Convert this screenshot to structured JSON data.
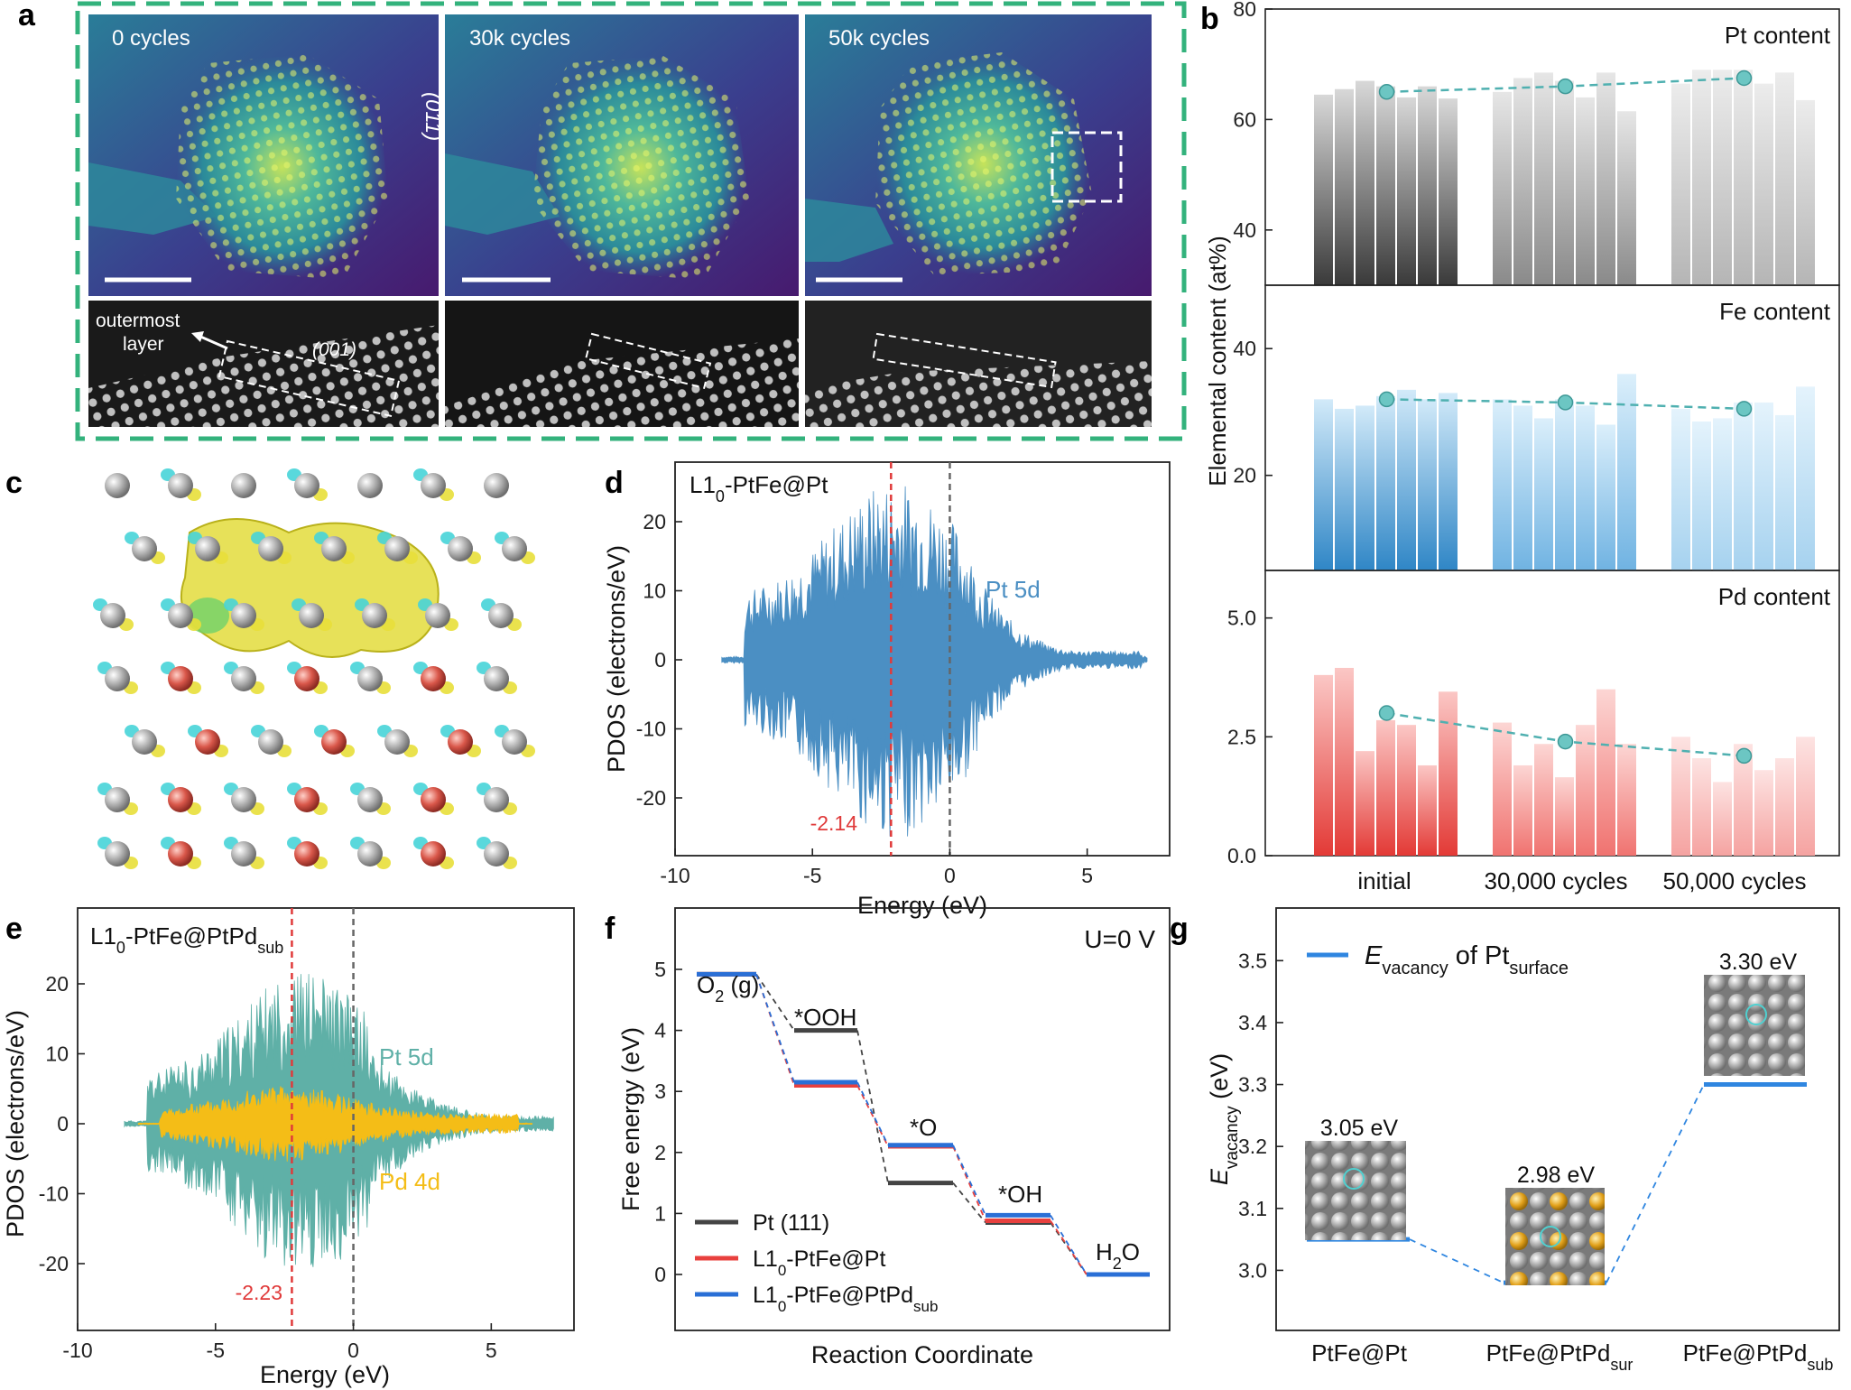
{
  "panel_labels": {
    "a": "a",
    "b": "b",
    "c": "c",
    "d": "d",
    "e": "e",
    "f": "f",
    "g": "g"
  },
  "panel_a": {
    "stem_labels": [
      "0 cycles",
      "30k cycles",
      "50k cycles"
    ],
    "facet_011": "(011)",
    "facet_001": "(001)",
    "outermost_line1": "outermost",
    "outermost_line2": "layer"
  },
  "panel_b": {
    "ylabel": "Elemental content (at%)",
    "categories": [
      "initial",
      "30,000 cycles",
      "50,000 cycles"
    ],
    "subpanels": [
      {
        "title": "Pt content",
        "yticks": [
          "80",
          "60",
          "40"
        ],
        "color_dark": "#555555",
        "color_light": "#d9d9d9",
        "bars": [
          [
            64.5,
            65.5,
            67,
            66,
            64,
            66,
            63.8
          ],
          [
            65,
            67.5,
            68.5,
            67,
            64,
            68.5,
            61.5
          ],
          [
            66.5,
            69,
            69,
            69,
            66.5,
            68.5,
            63.5
          ]
        ],
        "means": [
          65,
          66,
          67.5
        ]
      },
      {
        "title": "Fe content",
        "yticks": [
          "40",
          "20"
        ],
        "color_dark": "#4a90c8",
        "color_light": "#c9e4f6",
        "bars": [
          [
            32,
            30.5,
            31,
            32.5,
            33.5,
            32,
            33
          ],
          [
            32,
            31,
            29,
            32,
            31,
            28,
            36
          ],
          [
            30.5,
            28.5,
            29,
            31.5,
            31.5,
            29.5,
            34
          ]
        ],
        "means": [
          32,
          31.5,
          30.5
        ]
      },
      {
        "title": "Pd content",
        "yticks": [
          "5.0",
          "2.5",
          "0.0"
        ],
        "color_dark": "#e8524f",
        "color_light": "#fbd2d0",
        "bars": [
          [
            3.8,
            3.95,
            2.2,
            2.85,
            2.75,
            1.9,
            3.45
          ],
          [
            2.8,
            1.9,
            2.35,
            1.65,
            2.75,
            3.5,
            2.35
          ],
          [
            2.5,
            2.05,
            1.55,
            2.35,
            1.8,
            2.05,
            2.5
          ]
        ],
        "means": [
          3.0,
          2.4,
          2.1
        ]
      }
    ]
  },
  "panel_d": {
    "title_main": "L1",
    "title_sub": "0",
    "title_rest": "-PtFe@Pt",
    "series_label": "Pt 5d",
    "dband_center": "-2.14",
    "ylabel": "PDOS (electrons/eV)",
    "xlabel": "Energy (eV)",
    "xticks": [
      "-10",
      "-5",
      "0",
      "5"
    ],
    "yticks": [
      "20",
      "10",
      "0",
      "-10",
      "-20"
    ],
    "color": "#4b8fc3"
  },
  "panel_e": {
    "title_main": "L1",
    "title_sub": "0",
    "title_rest": "-PtFe@PtPd",
    "title_sub2": "sub",
    "series1": "Pt 5d",
    "series2": "Pd 4d",
    "dband_center": "-2.23",
    "ylabel": "PDOS (electrons/eV)",
    "xlabel": "Energy (eV)",
    "xticks": [
      "-10",
      "-5",
      "0",
      "5"
    ],
    "yticks": [
      "20",
      "10",
      "0",
      "-10",
      "-20"
    ]
  },
  "panel_f": {
    "condition": "U=0 V",
    "ylabel": "Free energy (eV)",
    "xlabel": "Reaction Coordinate",
    "yticks": [
      "5",
      "4",
      "3",
      "2",
      "1",
      "0"
    ],
    "species": [
      "O",
      "*OOH",
      "*O",
      "*OH",
      "H"
    ],
    "o2_sub": "2",
    "o2_tail": " (g)",
    "h2o_sub": "2",
    "h2o_tail": "O",
    "legend": [
      {
        "main": "Pt (111)",
        "sub": "",
        "rest": "",
        "color": "#444444"
      },
      {
        "main": "L1",
        "sub": "0",
        "rest": "-PtFe@Pt",
        "color": "#e8403e"
      },
      {
        "main": "L1",
        "sub": "0",
        "rest": "-PtFe@PtPd",
        "sub2": "sub",
        "color": "#2a6fd6"
      }
    ],
    "chart_data": {
      "type": "line",
      "steps": [
        "O2 (g)",
        "*OOH",
        "*O",
        "*OH",
        "H2O"
      ],
      "series": [
        {
          "name": "Pt (111)",
          "values": [
            4.92,
            4.0,
            1.5,
            0.85,
            0.0
          ]
        },
        {
          "name": "L10-PtFe@Pt",
          "values": [
            4.92,
            3.1,
            2.1,
            0.88,
            0.0
          ]
        },
        {
          "name": "L10-PtFe@PtPdsub",
          "values": [
            4.92,
            3.15,
            2.12,
            0.97,
            0.0
          ]
        }
      ]
    }
  },
  "panel_g": {
    "legend_E": "E",
    "legend_sub": "vacancy",
    "legend_mid": " of Pt",
    "legend_sub2": "surface",
    "ylabel_E": "E",
    "ylabel_sub": "vacancy",
    "ylabel_unit": " (eV)",
    "yticks": [
      "3.5",
      "3.4",
      "3.3",
      "3.2",
      "3.1",
      "3.0"
    ],
    "categories": [
      {
        "main": "PtFe@Pt",
        "sub": ""
      },
      {
        "main": "PtFe@PtPd",
        "sub": "sur"
      },
      {
        "main": "PtFe@PtPd",
        "sub": "sub"
      }
    ],
    "value_labels": [
      "3.05 eV",
      "2.98 eV",
      "3.30 eV"
    ],
    "chart_data": {
      "type": "line",
      "categories": [
        "PtFe@Pt",
        "PtFe@PtPdsur",
        "PtFe@PtPdsub"
      ],
      "values": [
        3.05,
        2.98,
        3.3
      ],
      "ylim": [
        2.97,
        3.55
      ]
    }
  },
  "chart_data": [
    {
      "type": "bar",
      "title": "Pt content",
      "categories": [
        "initial",
        "30,000 cycles",
        "50,000 cycles"
      ],
      "series": [
        {
          "name": "mean",
          "values": [
            65,
            66,
            67.5
          ]
        }
      ],
      "ylim": [
        30,
        80
      ]
    },
    {
      "type": "bar",
      "title": "Fe content",
      "categories": [
        "initial",
        "30,000 cycles",
        "50,000 cycles"
      ],
      "series": [
        {
          "name": "mean",
          "values": [
            32,
            31.5,
            30.5
          ]
        }
      ],
      "ylim": [
        5,
        50
      ]
    },
    {
      "type": "bar",
      "title": "Pd content",
      "categories": [
        "initial",
        "30,000 cycles",
        "50,000 cycles"
      ],
      "series": [
        {
          "name": "mean",
          "values": [
            3.0,
            2.4,
            2.1
          ]
        }
      ],
      "ylim": [
        0,
        6
      ]
    }
  ]
}
